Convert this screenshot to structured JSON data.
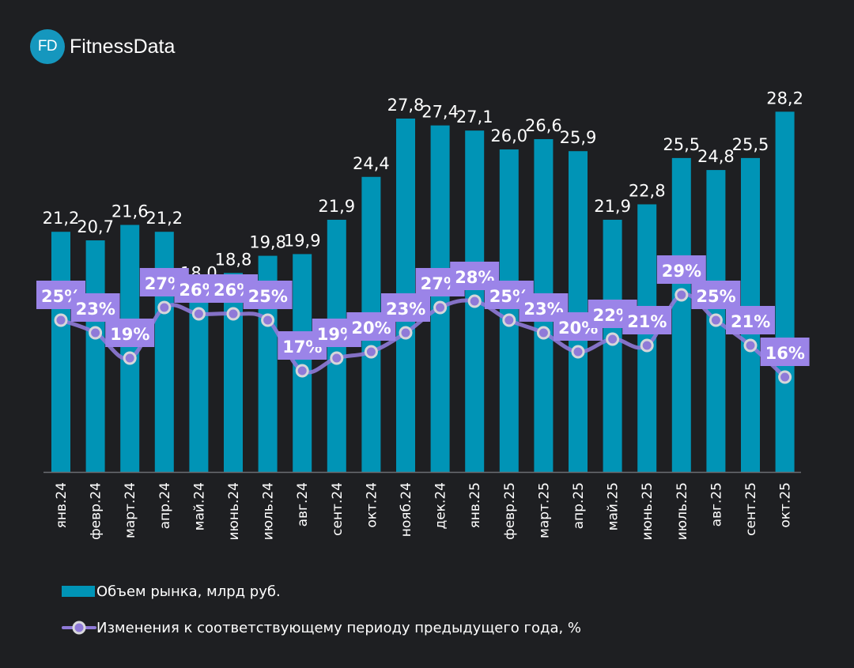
{
  "brand": {
    "badge": "FD",
    "name": "FitnessData",
    "accent": "#1597be"
  },
  "chart_data": {
    "type": "bar",
    "title": "",
    "xlabel": "",
    "ylabel": "",
    "categories": [
      "янв.24",
      "февр.24",
      "март.24",
      "апр.24",
      "май.24",
      "июнь.24",
      "июль.24",
      "авг.24",
      "сент.24",
      "окт.24",
      "нояб.24",
      "дек.24",
      "янв.25",
      "февр.25",
      "март.25",
      "апр.25",
      "май.25",
      "июнь.25",
      "июль.25",
      "авг.25",
      "сент.25",
      "окт.25"
    ],
    "series": [
      {
        "name": "Объем рынка, млрд руб.",
        "type": "bar",
        "color": "#0094b6",
        "values": [
          21.2,
          20.7,
          21.6,
          21.2,
          18.0,
          18.8,
          19.8,
          19.9,
          21.9,
          24.4,
          27.8,
          27.4,
          27.1,
          26.0,
          26.6,
          25.9,
          21.9,
          22.8,
          25.5,
          24.8,
          25.5,
          28.2
        ],
        "labels": [
          "21,2",
          "20,7",
          "21,6",
          "21,2",
          "18,0",
          "18,8",
          "19,8",
          "19,9",
          "21,9",
          "24,4",
          "27,8",
          "27,4",
          "27,1",
          "26,0",
          "26,6",
          "25,9",
          "21,9",
          "22,8",
          "25,5",
          "24,8",
          "25,5",
          "28,2"
        ]
      },
      {
        "name": "Изменения к соответствующему периоду предыдущего года, %",
        "type": "line",
        "color": "#8f7ad8",
        "label_bg": "#9b84e8",
        "values": [
          25,
          23,
          19,
          27,
          26,
          26,
          25,
          17,
          19,
          20,
          23,
          27,
          28,
          25,
          23,
          20,
          22,
          21,
          29,
          25,
          21,
          16
        ],
        "labels": [
          "25%",
          "23%",
          "19%",
          "27%",
          "26%",
          "26%",
          "25%",
          "17%",
          "19%",
          "20%",
          "23%",
          "27%",
          "28%",
          "25%",
          "23%",
          "20%",
          "22%",
          "21%",
          "29%",
          "25%",
          "21%",
          "16%"
        ]
      }
    ],
    "bar_axis_range": [
      7.2,
      30
    ],
    "line_axis_range": [
      10,
      35
    ],
    "grid": false,
    "legend_position": "bottom-left"
  },
  "legend": {
    "bar_label": "Объем рынка, млрд руб.",
    "line_label": "Изменения к соответствующему периоду предыдущего года, %"
  }
}
